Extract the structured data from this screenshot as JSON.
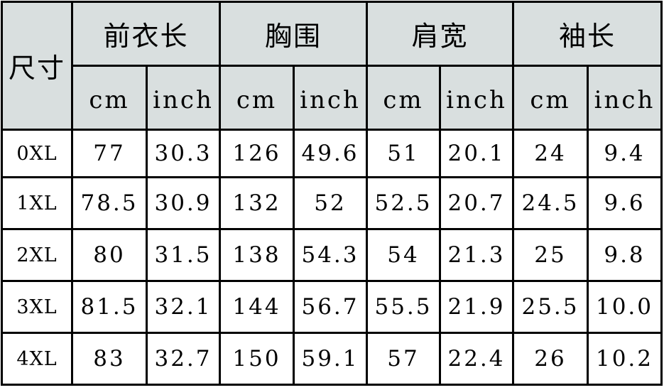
{
  "table": {
    "corner": "尺寸",
    "groups": [
      "前衣长",
      "胸围",
      "肩宽",
      "袖长"
    ],
    "units": [
      "cm",
      "inch"
    ],
    "rows": [
      {
        "size": "0XL",
        "values": [
          "77",
          "30.3",
          "126",
          "49.6",
          "51",
          "20.1",
          "24",
          "9.4"
        ]
      },
      {
        "size": "1XL",
        "values": [
          "78.5",
          "30.9",
          "132",
          "52",
          "52.5",
          "20.7",
          "24.5",
          "9.6"
        ]
      },
      {
        "size": "2XL",
        "values": [
          "80",
          "31.5",
          "138",
          "54.3",
          "54",
          "21.3",
          "25",
          "9.8"
        ]
      },
      {
        "size": "3XL",
        "values": [
          "81.5",
          "32.1",
          "144",
          "56.7",
          "55.5",
          "21.9",
          "25.5",
          "10.0"
        ]
      },
      {
        "size": "4XL",
        "values": [
          "83",
          "32.7",
          "150",
          "59.1",
          "57",
          "22.4",
          "26",
          "10.2"
        ]
      }
    ],
    "header_color": "#d9dfdf"
  }
}
